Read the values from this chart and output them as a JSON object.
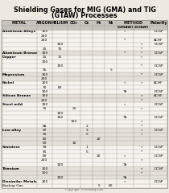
{
  "title_line1": "Shielding Gases for MIG (GMA) and TIG",
  "title_line2": "(GTAW) Processes",
  "header1": [
    "METAL",
    "ARGON",
    "HELIUM",
    "CO2",
    "O2",
    "H2",
    "N2",
    "METHOD",
    "Polarity"
  ],
  "header2": [
    "",
    "",
    "",
    "",
    "",
    "",
    "",
    "(GMAW)  (GTAW)",
    ""
  ],
  "rows": [
    [
      "Aluminum Alloys",
      "100",
      "",
      "",
      "",
      "",
      "",
      "*",
      "",
      "DCSP"
    ],
    [
      "",
      "200",
      "",
      "",
      "",
      "",
      "",
      "",
      "",
      ""
    ],
    [
      "",
      "200",
      "",
      "",
      "",
      "",
      "",
      "*",
      "",
      "ACHF"
    ],
    [
      "",
      "",
      "100",
      "",
      "",
      "",
      "",
      "",
      "*",
      "DCSP"
    ],
    [
      "",
      "25",
      "75",
      "",
      "",
      "",
      "",
      "",
      "*",
      ""
    ],
    [
      "Aluminum Bronze",
      "100",
      "",
      "",
      "",
      "",
      "",
      "*",
      "*",
      "DCSP"
    ],
    [
      "Copper",
      "25",
      "75",
      "",
      "",
      "",
      "",
      "",
      "*",
      ""
    ],
    [
      "",
      "100",
      "",
      "",
      "",
      "",
      "",
      "",
      "",
      ""
    ],
    [
      "",
      "",
      "100",
      "",
      "",
      "",
      "",
      "",
      "*",
      "DCSP"
    ],
    [
      "",
      "95",
      "",
      "",
      "",
      "",
      "5",
      "",
      "",
      ""
    ],
    [
      "Magnesium",
      "100",
      "",
      "",
      "",
      "",
      "",
      "",
      "*",
      "DCSP"
    ],
    [
      "",
      "200",
      "",
      "",
      "",
      "",
      "",
      "",
      "",
      ""
    ],
    [
      "Nickel",
      "100",
      "",
      "",
      "",
      "",
      "",
      "*",
      "*",
      "ACHF"
    ],
    [
      "",
      "70",
      "80",
      "",
      "",
      "",
      "",
      "",
      "",
      ""
    ],
    [
      "",
      "100",
      "",
      "",
      "",
      "",
      "",
      "*A",
      "",
      "DCSP"
    ],
    [
      "Silicon Bronze",
      "100",
      "",
      "",
      "",
      "",
      "",
      "",
      "*",
      "ACHF"
    ],
    [
      "",
      "200",
      "",
      "",
      "",
      "",
      "",
      "",
      "*",
      ""
    ],
    [
      "Steel mild",
      "100",
      "",
      "",
      "",
      "",
      "",
      "*",
      "",
      "DCSP"
    ],
    [
      "",
      "75",
      "",
      "25",
      "",
      "",
      "",
      "",
      "*",
      ""
    ],
    [
      "",
      "",
      "100",
      "",
      "",
      "",
      "",
      "",
      "",
      ""
    ],
    [
      "",
      "",
      "100",
      "",
      "",
      "",
      "",
      "*A",
      "",
      "DCSP"
    ],
    [
      "",
      "",
      "",
      "100",
      "",
      "",
      "",
      "",
      "*",
      ""
    ],
    [
      "",
      "68",
      "",
      "",
      "2",
      "",
      "",
      "",
      "*",
      ""
    ],
    [
      "Low alloy",
      "97",
      "",
      "",
      "3",
      "",
      "",
      "",
      "*",
      "DCSP"
    ],
    [
      "",
      "95",
      "",
      "",
      "5",
      "",
      "",
      "",
      "*",
      ""
    ],
    [
      "",
      "80",
      "",
      "",
      "",
      "20",
      "",
      "",
      "",
      ""
    ],
    [
      "",
      "60",
      "",
      "10",
      "",
      "",
      "",
      "",
      "",
      ""
    ],
    [
      "Stainless",
      "99",
      "",
      "",
      "1",
      "",
      "",
      "",
      "*",
      "DCSP"
    ],
    [
      "",
      "95",
      "",
      "",
      "5",
      "",
      "",
      "",
      "*",
      ""
    ],
    [
      "",
      "80",
      "",
      "",
      "",
      "20",
      "",
      "*",
      "",
      "DCSP"
    ],
    [
      "",
      "200",
      "",
      "",
      "",
      "",
      "",
      "",
      "*",
      ""
    ],
    [
      "",
      "",
      "100",
      "",
      "",
      "",
      "",
      "*A",
      "",
      ""
    ],
    [
      "Titanium",
      "100",
      "",
      "",
      "",
      "",
      "",
      "",
      "*",
      "DCSP"
    ],
    [
      "",
      "100",
      "",
      "",
      "",
      "",
      "",
      "",
      "*",
      ""
    ],
    [
      "",
      "",
      "100",
      "",
      "",
      "",
      "",
      "*A",
      "",
      ""
    ],
    [
      "Dissimilar Metals",
      "100",
      "",
      "",
      "",
      "",
      "",
      "*",
      "",
      "DCSP"
    ],
    [
      "Backup Gas",
      "",
      "",
      "",
      "",
      "5",
      "60",
      "",
      "",
      ""
    ]
  ],
  "bg_color": "#ede9e0",
  "header_bg": "#c8c4bc",
  "alt_row_color": "#e4e0d8",
  "white_row": "#f5f3ee",
  "border_color": "#999990",
  "title_font_size": 5.8,
  "header_font_size": 3.5,
  "cell_font_size": 3.2,
  "col_widths_rel": [
    1.6,
    0.7,
    0.7,
    0.6,
    0.55,
    0.55,
    0.55,
    0.75,
    0.75,
    0.8
  ]
}
